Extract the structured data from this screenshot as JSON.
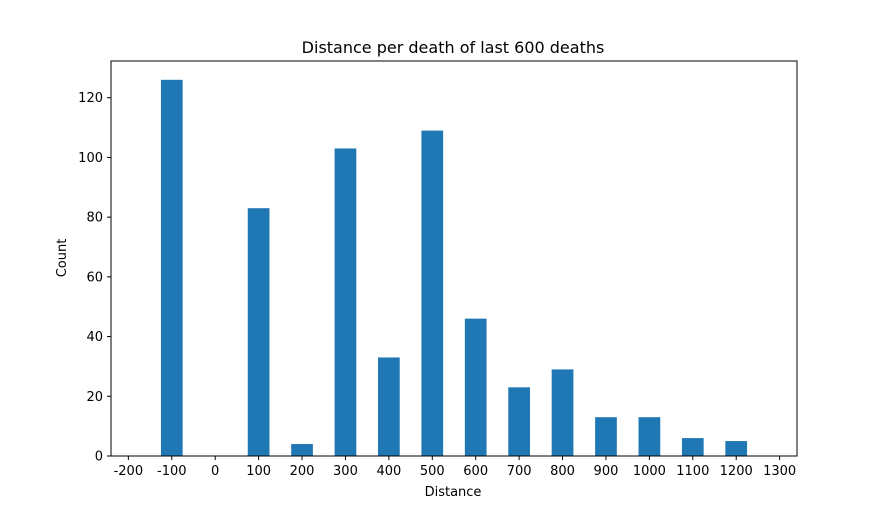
{
  "chart_data": {
    "type": "bar",
    "title": "Distance per death of last 600 deaths",
    "xlabel": "Distance",
    "ylabel": "Count",
    "x": [
      -100,
      0,
      100,
      200,
      300,
      400,
      500,
      600,
      700,
      800,
      900,
      1000,
      1100,
      1200
    ],
    "values": [
      126,
      0,
      83,
      4,
      103,
      33,
      109,
      46,
      23,
      29,
      13,
      13,
      6,
      5
    ],
    "bar_width": 50,
    "xlim": [
      -240,
      1340
    ],
    "ylim": [
      0,
      132.3
    ],
    "xticks": [
      "-200",
      "-100",
      "0",
      "100",
      "200",
      "300",
      "400",
      "500",
      "600",
      "700",
      "800",
      "900",
      "1000",
      "1100",
      "1200",
      "1300"
    ],
    "xtick_values": [
      -200,
      -100,
      0,
      100,
      200,
      300,
      400,
      500,
      600,
      700,
      800,
      900,
      1000,
      1100,
      1200,
      1300
    ],
    "yticks": [
      "0",
      "20",
      "40",
      "60",
      "80",
      "100",
      "120"
    ],
    "ytick_values": [
      0,
      20,
      40,
      60,
      80,
      100,
      120
    ],
    "bar_color": "#1f77b4",
    "grid": false
  }
}
